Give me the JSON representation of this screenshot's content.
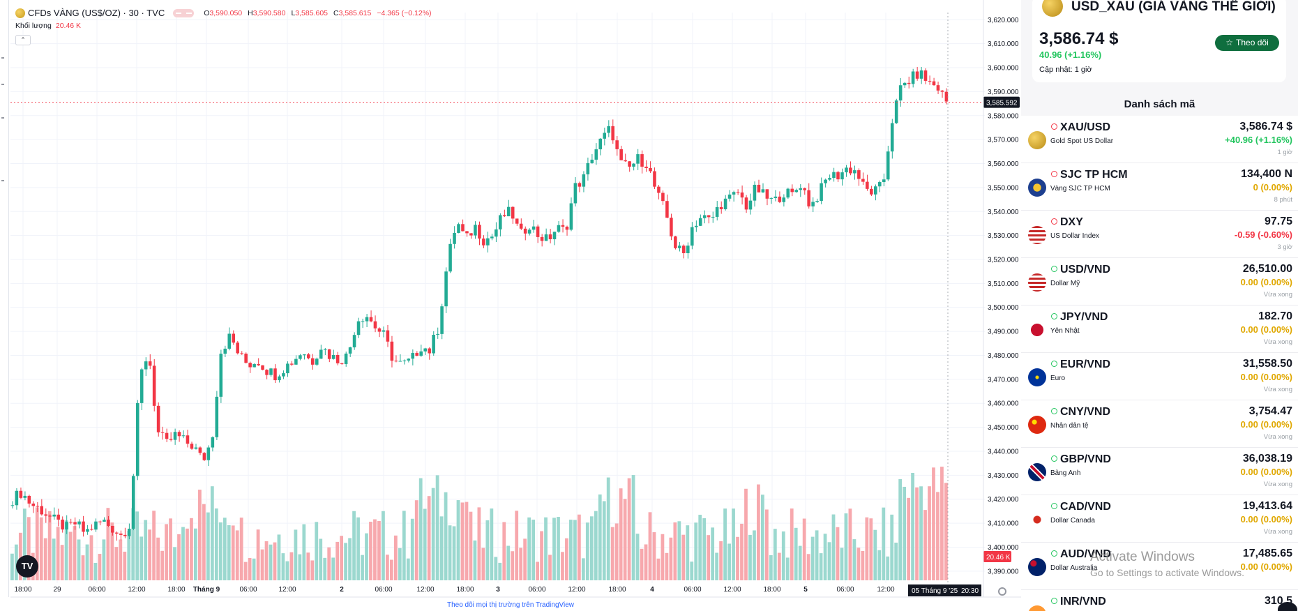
{
  "chart": {
    "symbol_name": "CFDs VÀNG (US$/OZ) · 30 · TVC",
    "ohlc": {
      "o_label": "O",
      "o": "3,590.050",
      "h_label": "H",
      "h": "3,590.580",
      "l_label": "L",
      "l": "3,585.605",
      "c_label": "C",
      "c": "3,585.615",
      "change": "−4.365 (−0.12%)"
    },
    "volume_label": "Khối lượng",
    "volume_value": "20.46 K",
    "collapse_icon": "chevron-up-icon",
    "tv_logo_text": "TV",
    "tradingview_link": "Theo dõi mọi thị trường trên TradingView",
    "price_axis_labels": [
      "3,620.000",
      "3,610.000",
      "3,600.000",
      "3,590.000",
      "3,580.000",
      "3,570.000",
      "3,560.000",
      "3,550.000",
      "3,540.000",
      "3,530.000",
      "3,520.000",
      "3,510.000",
      "3,500.000",
      "3,490.000",
      "3,480.000",
      "3,470.000",
      "3,460.000",
      "3,450.000",
      "3,440.000",
      "3,430.000",
      "3,420.000",
      "3,410.000",
      "3,400.000",
      "3,390.000"
    ],
    "current_price_label": "3,585.592",
    "volume_axis_label": "20.46 K",
    "time_axis_labels": [
      "18:00",
      "29",
      "06:00",
      "12:00",
      "18:00",
      "Tháng 9",
      "06:00",
      "12:00",
      "2",
      "06:00",
      "12:00",
      "18:00",
      "3",
      "06:00",
      "12:00",
      "18:00",
      "4",
      "06:00",
      "12:00",
      "18:00",
      "5",
      "06:00",
      "12:00"
    ],
    "crosshair_date": "05 Tháng 9 '25",
    "crosshair_time": "20:30",
    "colors": {
      "up": "#22ab94",
      "down": "#f23645",
      "vol_up": "#9bd8cf",
      "vol_down": "#f7a8ad"
    }
  },
  "chart_data": {
    "type": "candlestick",
    "title": "CFDs VÀNG (US$/OZ) · 30 · TVC",
    "interval": "30",
    "ylim": [
      3385,
      3623
    ],
    "close_path": [
      3420,
      3423,
      3418,
      3416,
      3413,
      3410,
      3408,
      3410,
      3406,
      3409,
      3411,
      3408,
      3405,
      3410,
      3470,
      3482,
      3448,
      3443,
      3447,
      3444,
      3442,
      3436,
      3445,
      3482,
      3488,
      3480,
      3476,
      3478,
      3474,
      3472,
      3475,
      3478,
      3482,
      3477,
      3484,
      3480,
      3478,
      3480,
      3495,
      3497,
      3492,
      3488,
      3478,
      3476,
      3478,
      3484,
      3482,
      3492,
      3520,
      3536,
      3528,
      3534,
      3528,
      3530,
      3538,
      3540,
      3530,
      3535,
      3530,
      3528,
      3533,
      3532,
      3550,
      3554,
      3564,
      3570,
      3575,
      3560,
      3558,
      3562,
      3560,
      3548,
      3540,
      3526,
      3522,
      3534,
      3538,
      3536,
      3543,
      3545,
      3548,
      3542,
      3550,
      3546,
      3544,
      3548,
      3547,
      3552,
      3542,
      3548,
      3555,
      3555,
      3558,
      3557,
      3549,
      3548,
      3551,
      3578,
      3592,
      3595,
      3598,
      3594,
      3592,
      3586
    ],
    "volume_range": [
      0,
      20.46
    ]
  },
  "panel": {
    "title": "USD_XAU (GIÁ VÀNG THẾ GIỚI)",
    "price": "3,586.74 $",
    "change": "40.96 (+1.16%)",
    "updated": "Cập nhật: 1 giờ",
    "follow_label": "Theo dõi",
    "follow_icon": "star-icon",
    "list_title": "Danh sách mã",
    "items": [
      {
        "symbol": "XAU/USD",
        "name": "Gold Spot US Dollar",
        "price": "3,586.74 $",
        "change": "+40.96 (+1.16%)",
        "time": "1 giờ",
        "trend": "pos",
        "clock": "red",
        "icon": "gold-coin-icon"
      },
      {
        "symbol": "SJC TP HCM",
        "name": "Vàng SJC TP HCM",
        "price": "134,400 N",
        "change": "0 (0.00%)",
        "time": "8 phút",
        "trend": "zero",
        "clock": "red",
        "icon": "sjc-logo-icon"
      },
      {
        "symbol": "DXY",
        "name": "US Dollar Index",
        "price": "97.75",
        "change": "-0.59 (-0.60%)",
        "time": "3 giờ",
        "trend": "neg",
        "clock": "red",
        "icon": "us-flag-icon"
      },
      {
        "symbol": "USD/VND",
        "name": "Dollar Mỹ",
        "price": "26,510.00",
        "change": "0.00 (0.00%)",
        "time": "Vừa xong",
        "trend": "zero",
        "clock": "green",
        "icon": "us-flag-icon"
      },
      {
        "symbol": "JPY/VND",
        "name": "Yên Nhật",
        "price": "182.70",
        "change": "0.00 (0.00%)",
        "time": "Vừa xong",
        "trend": "zero",
        "clock": "green",
        "icon": "japan-flag-icon"
      },
      {
        "symbol": "EUR/VND",
        "name": "Euro",
        "price": "31,558.50",
        "change": "0.00 (0.00%)",
        "time": "Vừa xong",
        "trend": "zero",
        "clock": "green",
        "icon": "eu-flag-icon"
      },
      {
        "symbol": "CNY/VND",
        "name": "Nhân dân tệ",
        "price": "3,754.47",
        "change": "0.00 (0.00%)",
        "time": "Vừa xong",
        "trend": "zero",
        "clock": "green",
        "icon": "china-flag-icon"
      },
      {
        "symbol": "GBP/VND",
        "name": "Bảng Anh",
        "price": "36,038.19",
        "change": "0.00 (0.00%)",
        "time": "Vừa xong",
        "trend": "zero",
        "clock": "green",
        "icon": "uk-flag-icon"
      },
      {
        "symbol": "CAD/VND",
        "name": "Dollar Canada",
        "price": "19,413.64",
        "change": "0.00 (0.00%)",
        "time": "Vừa xong",
        "trend": "zero",
        "clock": "green",
        "icon": "canada-flag-icon"
      },
      {
        "symbol": "AUD/VND",
        "name": "Dollar Australia",
        "price": "17,485.65",
        "change": "0.00 (0.00%)",
        "time": "",
        "trend": "zero",
        "clock": "green",
        "icon": "australia-flag-icon"
      },
      {
        "symbol": "INR/VND",
        "name": "",
        "price": "310.5",
        "change": "",
        "time": "",
        "trend": "zero",
        "clock": "green",
        "icon": "india-flag-icon"
      }
    ]
  },
  "watermark": {
    "line1": "Activate Windows",
    "line2": "Go to Settings to activate Windows."
  },
  "chat_icon": "chat-bubble-icon"
}
